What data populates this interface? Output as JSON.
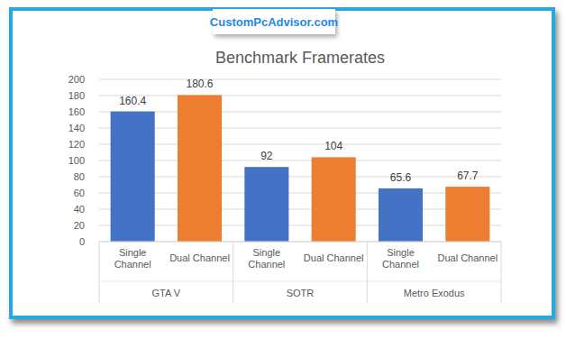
{
  "chart_data": {
    "type": "bar",
    "title": "Benchmark Framerates",
    "annotations": [
      "CustomPcAdvisor.com"
    ],
    "categories": [
      "GTA V",
      "SOTR",
      "Metro Exodus"
    ],
    "series": [
      {
        "name": "Single Channel",
        "color": "#4472c4",
        "values": [
          160.4,
          92,
          65.6
        ]
      },
      {
        "name": "Dual Channel",
        "color": "#ed7d31",
        "values": [
          180.6,
          104,
          67.7
        ]
      }
    ],
    "ylim": [
      0,
      200
    ],
    "yticks": [
      0,
      20,
      40,
      60,
      80,
      100,
      120,
      140,
      160,
      180,
      200
    ],
    "grid": true,
    "data_labels": true
  }
}
